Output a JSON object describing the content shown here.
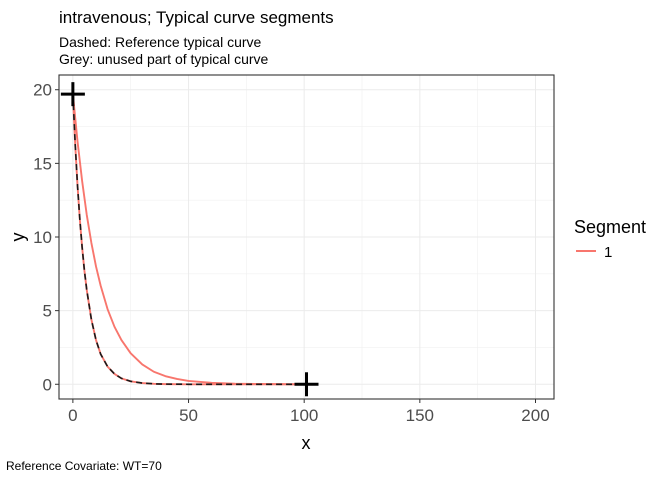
{
  "chart_data": {
    "type": "line",
    "title": "intravenous; Typical curve segments",
    "subtitles": [
      "Dashed: Reference typical curve",
      "Grey: unused part of typical curve"
    ],
    "caption": "Reference Covariate: WT=70",
    "xlabel": "x",
    "ylabel": "y",
    "xlim": [
      -6,
      208
    ],
    "ylim": [
      -1,
      21
    ],
    "xticks": [
      0,
      50,
      100,
      150,
      200
    ],
    "yticks": [
      0,
      5,
      10,
      15,
      20
    ],
    "grid": true,
    "legend": {
      "title": "Segment",
      "placement": "right",
      "entries": [
        {
          "label": "1",
          "color": "#F8766D"
        }
      ]
    },
    "series": [
      {
        "name": "1",
        "style": "solid",
        "color": "#F8766D",
        "x": [
          0,
          2,
          4,
          6,
          8,
          10,
          12,
          15,
          18,
          21,
          25,
          30,
          35,
          40,
          45,
          50,
          60,
          70,
          80,
          90,
          100
        ],
        "y": [
          19.7,
          16.5,
          13.8,
          11.5,
          9.6,
          8.0,
          6.7,
          5.1,
          3.9,
          3.0,
          2.1,
          1.35,
          0.85,
          0.55,
          0.36,
          0.23,
          0.1,
          0.04,
          0.02,
          0.01,
          0.0
        ]
      },
      {
        "name": "",
        "style": "solid",
        "color": "#F8766D",
        "x": [
          0,
          1,
          2,
          3,
          4,
          5,
          6,
          8,
          10,
          12,
          15,
          18,
          21,
          25,
          30,
          35,
          40,
          50,
          60,
          80,
          100
        ],
        "y": [
          19.7,
          16.3,
          13.5,
          11.2,
          9.3,
          7.7,
          6.4,
          4.4,
          3.0,
          2.05,
          1.2,
          0.7,
          0.4,
          0.2,
          0.08,
          0.03,
          0.01,
          0.0,
          0.0,
          0.0,
          0.0
        ]
      },
      {
        "name": "",
        "style": "dashed",
        "color": "#1a1a1a",
        "x": [
          0,
          1,
          2,
          3,
          4,
          5,
          6,
          8,
          10,
          12,
          15,
          18,
          21,
          25,
          30,
          35,
          40,
          50,
          60,
          80,
          100
        ],
        "y": [
          19.7,
          16.3,
          13.5,
          11.2,
          9.3,
          7.7,
          6.4,
          4.4,
          3.0,
          2.05,
          1.2,
          0.7,
          0.4,
          0.2,
          0.08,
          0.03,
          0.01,
          0.0,
          0.0,
          0.0,
          0.0
        ]
      }
    ],
    "markers": [
      {
        "x": 0,
        "y": 19.7,
        "shape": "plus"
      },
      {
        "x": 101,
        "y": 0,
        "shape": "plus"
      }
    ]
  }
}
